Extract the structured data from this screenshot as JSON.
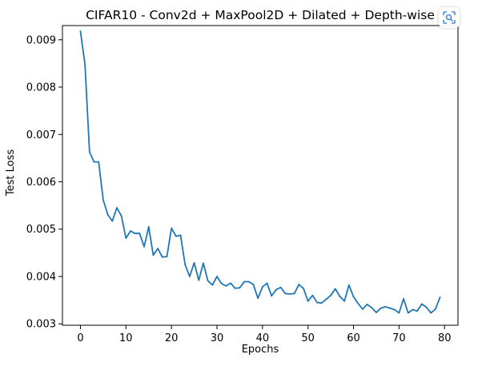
{
  "chart_data": {
    "type": "line",
    "title": "CIFAR10 - Conv2d + MaxPool2D + Dilated + Depth-wise",
    "xlabel": "Epochs",
    "ylabel": "Test Loss",
    "xlim": [
      -3.95,
      82.95
    ],
    "ylim": [
      0.00297,
      0.0093
    ],
    "xticks": [
      0,
      10,
      20,
      30,
      40,
      50,
      60,
      70,
      80
    ],
    "xtick_labels": [
      "0",
      "10",
      "20",
      "30",
      "40",
      "50",
      "60",
      "70",
      "80"
    ],
    "yticks": [
      0.003,
      0.004,
      0.005,
      0.006,
      0.007,
      0.008,
      0.009
    ],
    "ytick_labels": [
      "0.003",
      "0.004",
      "0.005",
      "0.006",
      "0.007",
      "0.008",
      "0.009"
    ],
    "grid": false,
    "line_color": "#1f77b4",
    "series": [
      {
        "x": [
          0,
          1,
          2,
          3,
          4,
          5,
          6,
          7,
          8,
          9,
          10,
          11,
          12,
          13,
          14,
          15,
          16,
          17,
          18,
          19,
          20,
          21,
          22,
          23,
          24,
          25,
          26,
          27,
          28,
          29,
          30,
          31,
          32,
          33,
          34,
          35,
          36,
          37,
          38,
          39,
          40,
          41,
          42,
          43,
          44,
          45,
          46,
          47,
          48,
          49,
          50,
          51,
          52,
          53,
          54,
          55,
          56,
          57,
          58,
          59,
          60,
          61,
          62,
          63,
          64,
          65,
          66,
          67,
          68,
          69,
          70,
          71,
          72,
          73,
          74,
          75,
          76,
          77,
          78,
          79
        ],
        "values": [
          0.00918,
          0.00848,
          0.00663,
          0.00642,
          0.00642,
          0.00562,
          0.00531,
          0.00517,
          0.00545,
          0.00528,
          0.00481,
          0.00496,
          0.00491,
          0.00491,
          0.00463,
          0.00505,
          0.00445,
          0.00459,
          0.00441,
          0.00442,
          0.00502,
          0.00485,
          0.00487,
          0.00425,
          0.004,
          0.00429,
          0.00392,
          0.00428,
          0.00391,
          0.00382,
          0.004,
          0.00385,
          0.0038,
          0.00386,
          0.00375,
          0.00376,
          0.00389,
          0.00389,
          0.00383,
          0.00354,
          0.00378,
          0.00386,
          0.00359,
          0.00372,
          0.00377,
          0.00364,
          0.00363,
          0.00364,
          0.00383,
          0.00375,
          0.00348,
          0.0036,
          0.00345,
          0.00344,
          0.00352,
          0.0036,
          0.00374,
          0.00358,
          0.00348,
          0.00382,
          0.00357,
          0.00343,
          0.00331,
          0.00341,
          0.00334,
          0.00324,
          0.00333,
          0.00336,
          0.00333,
          0.0033,
          0.00323,
          0.00353,
          0.00323,
          0.0033,
          0.00327,
          0.00342,
          0.00335,
          0.00323,
          0.00331,
          0.00356
        ]
      }
    ]
  },
  "toolbar": {
    "lens_icon": "visual-search-icon"
  }
}
